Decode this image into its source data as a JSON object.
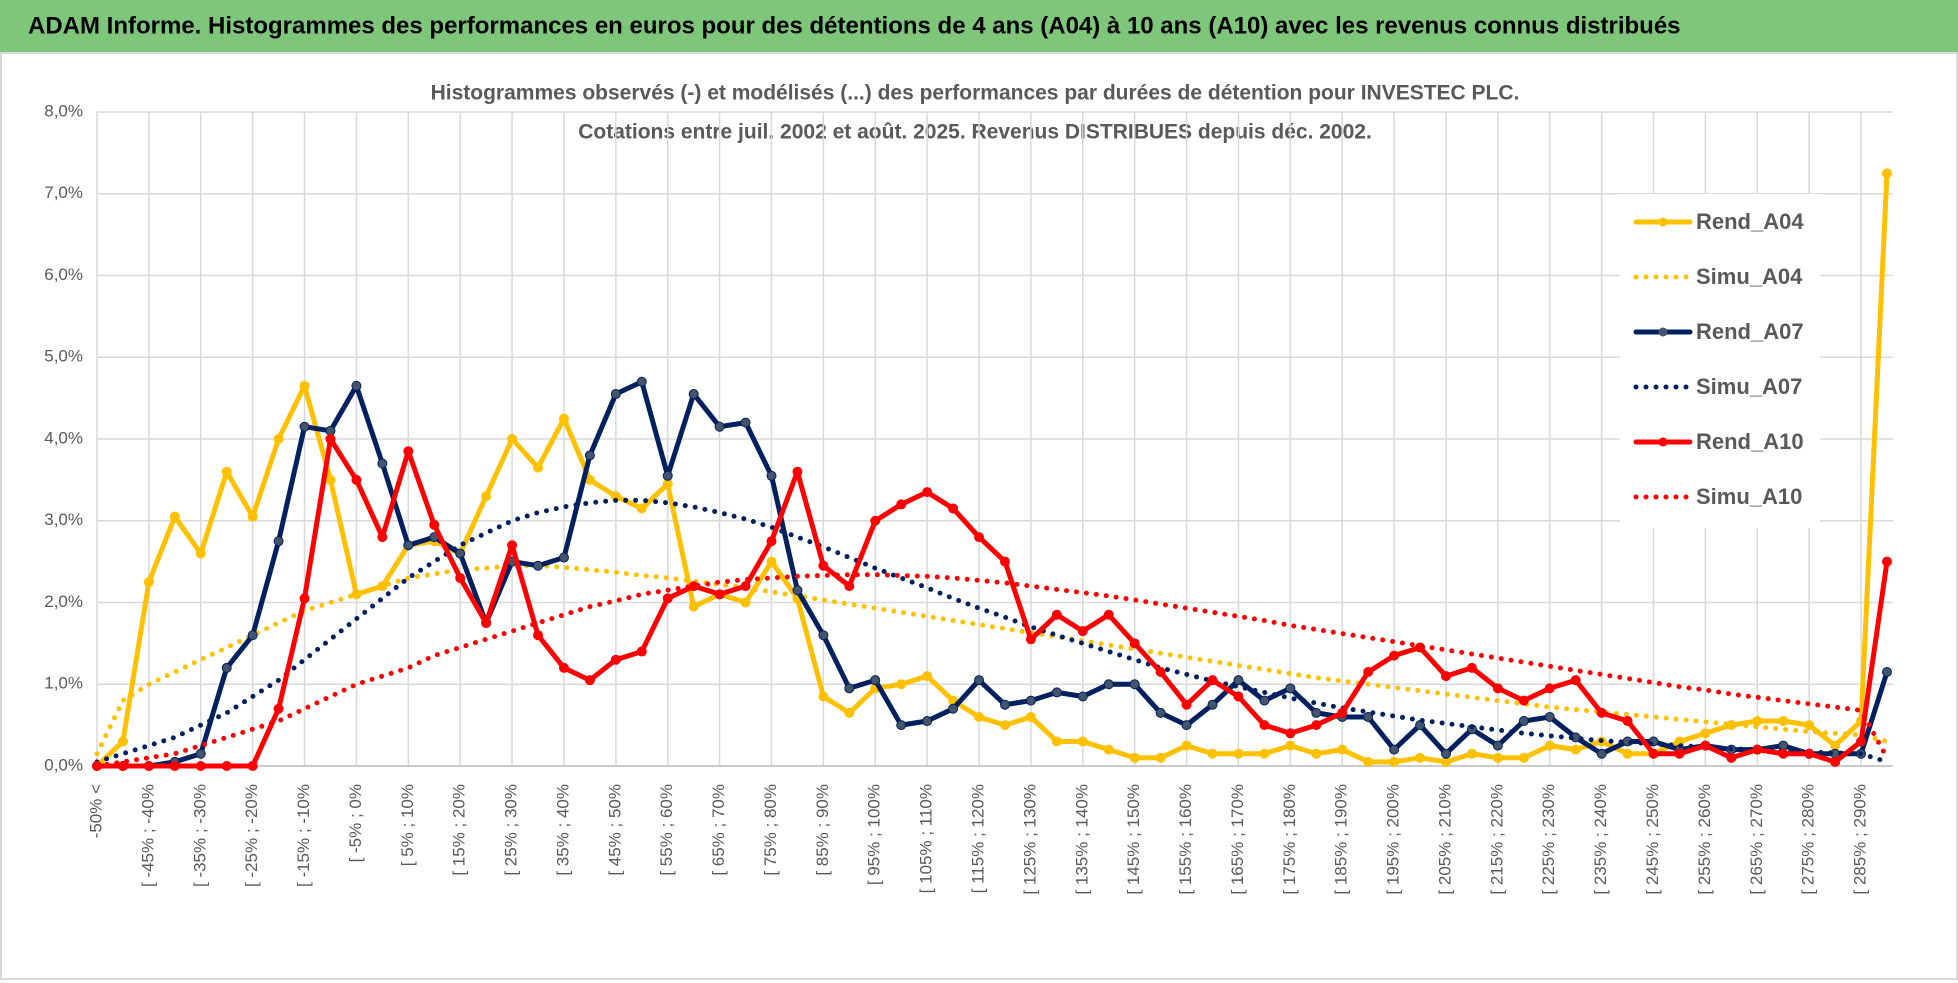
{
  "header": {
    "title": "ADAM Informe. Histogrammes des performances en euros pour des détentions de 4 ans (A04) à 10 ans (A10) avec les revenus connus distribués"
  },
  "chart_data": {
    "type": "line",
    "title": "Histogrammes observés (-) et modélisés (...) des performances par durées de détention pour INVESTEC PLC.",
    "subtitle": "Cotations entre juil. 2002 et août. 2025. Revenus DISTRIBUES depuis déc. 2002.",
    "categories": [
      "-50% <",
      null,
      "[ -45% ; -40%",
      null,
      "[ -35% ; -30%",
      null,
      "[ -25% ; -20%",
      null,
      "[ -15% ; -10%",
      null,
      "[ -5% ; 0%",
      null,
      "[ 5% ; 10%",
      null,
      "[ 15% ; 20%",
      null,
      "[ 25% ; 30%",
      null,
      "[ 35% ; 40%",
      null,
      "[ 45% ; 50%",
      null,
      "[ 55% ; 60%",
      null,
      "[ 65% ; 70%",
      null,
      "[ 75% ; 80%",
      null,
      "[ 85% ; 90%",
      null,
      "[ 95% ; 100%",
      null,
      "[ 105% ; 110%",
      null,
      "[ 115% ; 120%",
      null,
      "[ 125% ; 130%",
      null,
      "[ 135% ; 140%",
      null,
      "[ 145% ; 150%",
      null,
      "[ 155% ; 160%",
      null,
      "[ 165% ; 170%",
      null,
      "[ 175% ; 180%",
      null,
      "[ 185% ; 190%",
      null,
      "[ 195% ; 200%",
      null,
      "[ 205% ; 210%",
      null,
      "[ 215% ; 220%",
      null,
      "[ 225% ; 230%",
      null,
      "[ 235% ; 240%",
      null,
      "[ 245% ; 250%",
      null,
      "[ 255% ; 260%",
      null,
      "[ 265% ; 270%",
      null,
      "[ 275% ; 280%",
      null,
      "[ 285% ; 290%",
      null
    ],
    "ylim": [
      0,
      8
    ],
    "yticks": [
      {
        "value": 0,
        "label": "0,0%"
      },
      {
        "value": 1,
        "label": "1,0%"
      },
      {
        "value": 2,
        "label": "2,0%"
      },
      {
        "value": 3,
        "label": "3,0%"
      },
      {
        "value": 4,
        "label": "4,0%"
      },
      {
        "value": 5,
        "label": "5,0%"
      },
      {
        "value": 6,
        "label": "6,0%"
      },
      {
        "value": 7,
        "label": "7,0%"
      },
      {
        "value": 8,
        "label": "8,0%"
      }
    ],
    "grid": true,
    "legend": "upper right",
    "series": [
      {
        "name": "Rend_A04",
        "color": "#FFC000",
        "line_style": "solid",
        "values": [
          0,
          0.3,
          2.25,
          3.05,
          2.6,
          3.6,
          3.05,
          4.0,
          4.65,
          3.5,
          2.1,
          2.2,
          2.7,
          2.75,
          2.6,
          3.3,
          4.0,
          3.65,
          4.25,
          3.5,
          3.3,
          3.15,
          3.45,
          1.95,
          2.1,
          2.0,
          2.5,
          2.05,
          0.85,
          0.65,
          0.95,
          1.0,
          1.1,
          0.8,
          0.6,
          0.5,
          0.6,
          0.3,
          0.3,
          0.2,
          0.1,
          0.1,
          0.25,
          0.15,
          0.15,
          0.15,
          0.25,
          0.15,
          0.2,
          0.05,
          0.05,
          0.1,
          0.05,
          0.15,
          0.1,
          0.1,
          0.25,
          0.2,
          0.3,
          0.15,
          0.15,
          0.3,
          0.4,
          0.5,
          0.55,
          0.55,
          0.5,
          0.25,
          0.55,
          7.25
        ]
      },
      {
        "name": "Simu_A04",
        "color": "#FFC000",
        "line_style": "dotted",
        "values": [
          0.15,
          0.8,
          1.0,
          1.15,
          1.3,
          1.45,
          1.6,
          1.75,
          1.9,
          2.0,
          2.1,
          2.2,
          2.3,
          2.35,
          2.4,
          2.42,
          2.45,
          2.45,
          2.43,
          2.4,
          2.37,
          2.33,
          2.3,
          2.26,
          2.22,
          2.18,
          2.13,
          2.08,
          2.03,
          1.98,
          1.93,
          1.88,
          1.83,
          1.78,
          1.73,
          1.68,
          1.63,
          1.58,
          1.53,
          1.48,
          1.43,
          1.38,
          1.33,
          1.28,
          1.23,
          1.18,
          1.13,
          1.08,
          1.04,
          1.0,
          0.96,
          0.92,
          0.88,
          0.84,
          0.8,
          0.76,
          0.72,
          0.69,
          0.66,
          0.63,
          0.6,
          0.57,
          0.54,
          0.51,
          0.48,
          0.45,
          0.42,
          0.4,
          0.38,
          0.3
        ]
      },
      {
        "name": "Rend_A07",
        "color": "#002060",
        "line_style": "solid",
        "values": [
          0,
          0,
          0,
          0.05,
          0.15,
          1.2,
          1.6,
          2.75,
          4.15,
          4.1,
          4.65,
          3.7,
          2.7,
          2.8,
          2.6,
          1.75,
          2.5,
          2.45,
          2.55,
          3.8,
          4.55,
          4.7,
          3.55,
          4.55,
          4.15,
          4.2,
          3.55,
          2.15,
          1.6,
          0.95,
          1.05,
          0.5,
          0.55,
          0.7,
          1.05,
          0.75,
          0.8,
          0.9,
          0.85,
          1.0,
          1.0,
          0.65,
          0.5,
          0.75,
          1.05,
          0.8,
          0.95,
          0.65,
          0.6,
          0.6,
          0.2,
          0.5,
          0.15,
          0.45,
          0.25,
          0.55,
          0.6,
          0.35,
          0.15,
          0.3,
          0.3,
          0.2,
          0.25,
          0.2,
          0.2,
          0.25,
          0.15,
          0.15,
          0.15,
          1.15
        ]
      },
      {
        "name": "Simu_A07",
        "color": "#002060",
        "line_style": "dotted",
        "values": [
          0.05,
          0.15,
          0.25,
          0.35,
          0.5,
          0.65,
          0.85,
          1.05,
          1.3,
          1.55,
          1.8,
          2.05,
          2.3,
          2.5,
          2.7,
          2.85,
          3.0,
          3.1,
          3.17,
          3.22,
          3.25,
          3.25,
          3.22,
          3.17,
          3.1,
          3.02,
          2.92,
          2.8,
          2.68,
          2.55,
          2.42,
          2.3,
          2.18,
          2.05,
          1.93,
          1.82,
          1.7,
          1.6,
          1.5,
          1.4,
          1.3,
          1.2,
          1.12,
          1.04,
          0.97,
          0.9,
          0.83,
          0.77,
          0.71,
          0.66,
          0.61,
          0.56,
          0.52,
          0.48,
          0.44,
          0.4,
          0.37,
          0.34,
          0.31,
          0.29,
          0.27,
          0.25,
          0.23,
          0.21,
          0.2,
          0.18,
          0.17,
          0.16,
          0.15,
          0.05
        ]
      },
      {
        "name": "Rend_A10",
        "color": "#FF0000",
        "line_style": "solid",
        "values": [
          0,
          0,
          0,
          0,
          0,
          0,
          0,
          0.7,
          2.05,
          4.0,
          3.5,
          2.8,
          3.85,
          2.95,
          2.3,
          1.75,
          2.7,
          1.6,
          1.2,
          1.05,
          1.3,
          1.4,
          2.05,
          2.2,
          2.1,
          2.2,
          2.75,
          3.6,
          2.45,
          2.2,
          3.0,
          3.2,
          3.35,
          3.15,
          2.8,
          2.5,
          1.55,
          1.85,
          1.65,
          1.85,
          1.5,
          1.15,
          0.75,
          1.05,
          0.85,
          0.5,
          0.4,
          0.5,
          0.65,
          1.15,
          1.35,
          1.45,
          1.1,
          1.2,
          0.95,
          0.8,
          0.95,
          1.05,
          0.65,
          0.55,
          0.15,
          0.15,
          0.25,
          0.1,
          0.2,
          0.15,
          0.15,
          0.05,
          0.3,
          2.5
        ]
      },
      {
        "name": "Simu_A10",
        "color": "#FF0000",
        "line_style": "dotted",
        "values": [
          0.0,
          0.05,
          0.1,
          0.15,
          0.25,
          0.35,
          0.45,
          0.55,
          0.7,
          0.85,
          1.0,
          1.1,
          1.2,
          1.35,
          1.45,
          1.55,
          1.65,
          1.75,
          1.85,
          1.95,
          2.02,
          2.1,
          2.15,
          2.2,
          2.25,
          2.28,
          2.3,
          2.32,
          2.33,
          2.34,
          2.34,
          2.33,
          2.32,
          2.3,
          2.27,
          2.24,
          2.2,
          2.16,
          2.12,
          2.08,
          2.03,
          1.98,
          1.93,
          1.88,
          1.83,
          1.78,
          1.72,
          1.67,
          1.62,
          1.57,
          1.52,
          1.47,
          1.42,
          1.37,
          1.32,
          1.27,
          1.22,
          1.17,
          1.12,
          1.07,
          1.02,
          0.97,
          0.93,
          0.88,
          0.84,
          0.8,
          0.76,
          0.72,
          0.68,
          0.1
        ]
      }
    ]
  }
}
